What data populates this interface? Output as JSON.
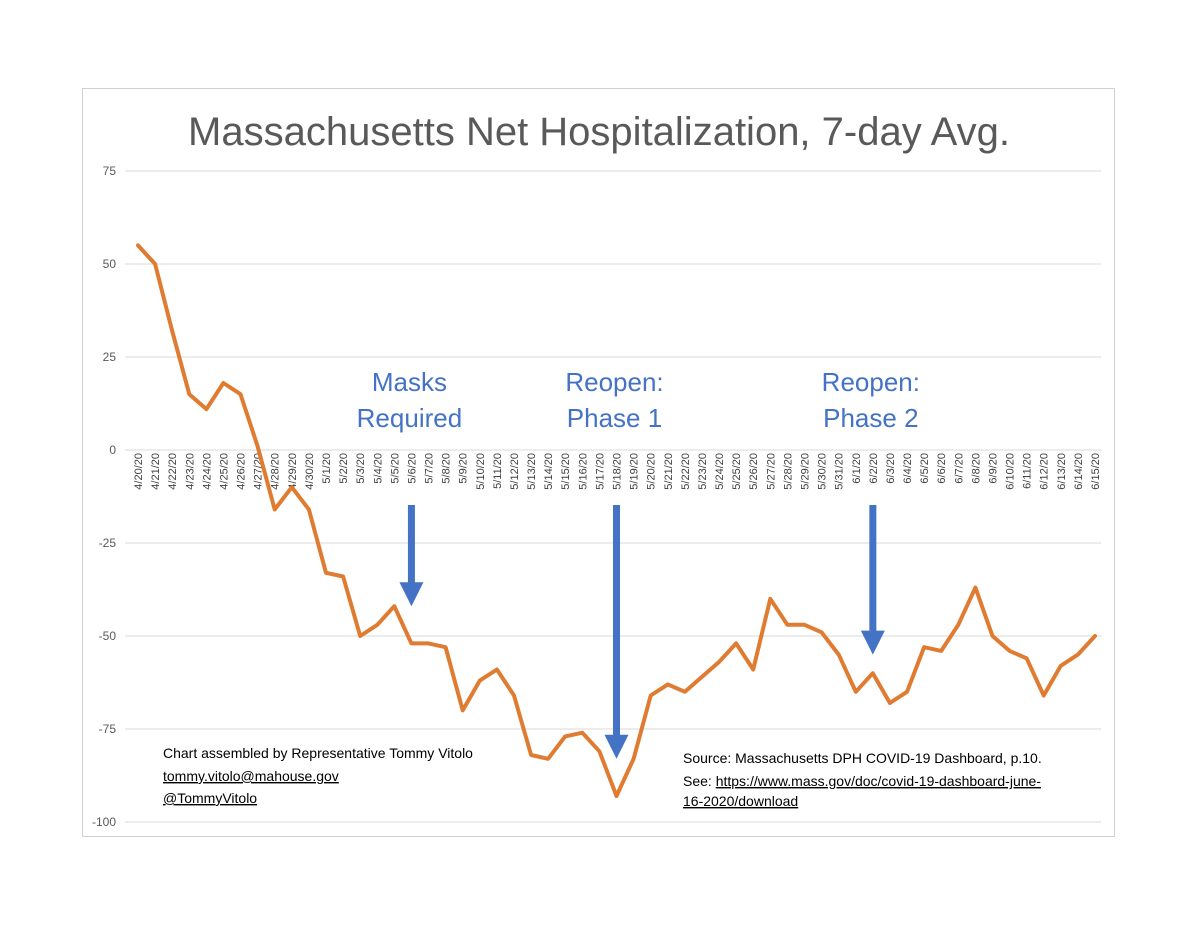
{
  "chart_data": {
    "type": "line",
    "title": "Massachusetts Net Hospitalization, 7-day Avg.",
    "xlabel": "",
    "ylabel": "",
    "ylim": [
      -100,
      75
    ],
    "yticks": [
      75,
      50,
      25,
      0,
      -25,
      -50,
      -75,
      -100
    ],
    "grid": true,
    "legend": "none",
    "line_color": "#e07b32",
    "x": [
      "4/20/20",
      "4/21/20",
      "4/22/20",
      "4/23/20",
      "4/24/20",
      "4/25/20",
      "4/26/20",
      "4/27/20",
      "4/28/20",
      "4/29/20",
      "4/30/20",
      "5/1/20",
      "5/2/20",
      "5/3/20",
      "5/4/20",
      "5/5/20",
      "5/6/20",
      "5/7/20",
      "5/8/20",
      "5/9/20",
      "5/10/20",
      "5/11/20",
      "5/12/20",
      "5/13/20",
      "5/14/20",
      "5/15/20",
      "5/16/20",
      "5/17/20",
      "5/18/20",
      "5/19/20",
      "5/20/20",
      "5/21/20",
      "5/22/20",
      "5/23/20",
      "5/24/20",
      "5/25/20",
      "5/26/20",
      "5/27/20",
      "5/28/20",
      "5/29/20",
      "5/30/20",
      "5/31/20",
      "6/1/20",
      "6/2/20",
      "6/3/20",
      "6/4/20",
      "6/5/20",
      "6/6/20",
      "6/7/20",
      "6/8/20",
      "6/9/20",
      "6/10/20",
      "6/11/20",
      "6/12/20",
      "6/13/20",
      "6/14/20",
      "6/15/20"
    ],
    "values": [
      55,
      50,
      32,
      15,
      11,
      18,
      15,
      1,
      -16,
      -10,
      -16,
      -33,
      -34,
      -50,
      -47,
      -42,
      -52,
      -52,
      -53,
      -70,
      -62,
      -59,
      -66,
      -82,
      -83,
      -77,
      -76,
      -81,
      -93,
      -83,
      -66,
      -63,
      -65,
      -61,
      -57,
      -52,
      -59,
      -40,
      -47,
      -47,
      -49,
      -55,
      -65,
      -60,
      -68,
      -65,
      -53,
      -54,
      -47,
      -37,
      -50,
      -54,
      -56,
      -66,
      -58,
      -55,
      -50
    ],
    "annotations": [
      {
        "lines": [
          "Masks",
          "Required"
        ],
        "x": "5/6/20",
        "arrow_to": -42,
        "color": "#4472c4"
      },
      {
        "lines": [
          "Reopen:",
          "Phase 1"
        ],
        "x": "5/18/20",
        "arrow_to": -83,
        "color": "#4472c4"
      },
      {
        "lines": [
          "Reopen:",
          "Phase 2"
        ],
        "x": "6/2/20",
        "arrow_to": -55,
        "color": "#4472c4"
      }
    ],
    "credit": {
      "line1": "Chart assembled by Representative  Tommy Vitolo",
      "email": "tommy.vitolo@mahouse.gov",
      "handle": "@TommyVitolo"
    },
    "source": {
      "line1": "Source: Massachusetts  DPH COVID-19 Dashboard, p.10.",
      "see_label": "See: ",
      "url_part1": "https://www.mass.gov/doc/covid-19-dashboard-june-",
      "url_part2": "16-2020/download"
    }
  }
}
